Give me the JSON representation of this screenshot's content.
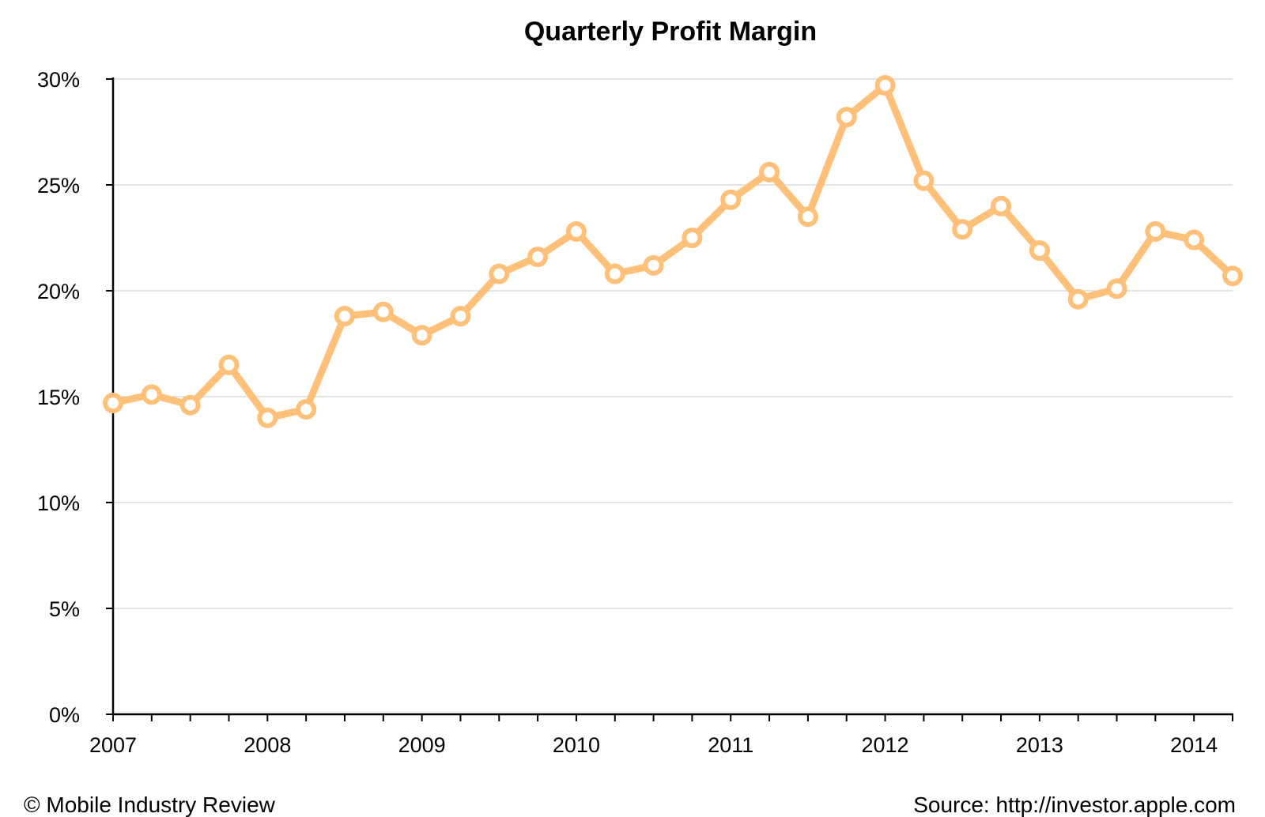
{
  "chart_data": {
    "type": "line",
    "title": "Quarterly Profit Margin",
    "xlabel": "",
    "ylabel": "",
    "ylim": [
      0,
      30
    ],
    "yticks": [
      0,
      5,
      10,
      15,
      20,
      25,
      30
    ],
    "ytick_labels": [
      "0%",
      "5%",
      "10%",
      "15%",
      "20%",
      "25%",
      "30%"
    ],
    "x_range": [
      2007,
      2014.25
    ],
    "xtick_labels": [
      "2007",
      "2008",
      "2009",
      "2010",
      "2011",
      "2012",
      "2013",
      "2014"
    ],
    "grid": true,
    "legend": "none",
    "series": [
      {
        "name": "Profit Margin",
        "color": "#FFC07A",
        "x": [
          2007.0,
          2007.25,
          2007.5,
          2007.75,
          2008.0,
          2008.25,
          2008.5,
          2008.75,
          2009.0,
          2009.25,
          2009.5,
          2009.75,
          2010.0,
          2010.25,
          2010.5,
          2010.75,
          2011.0,
          2011.25,
          2011.5,
          2011.75,
          2012.0,
          2012.25,
          2012.5,
          2012.75,
          2013.0,
          2013.25,
          2013.5,
          2013.75,
          2014.0,
          2014.25
        ],
        "values": [
          14.7,
          15.1,
          14.6,
          16.5,
          14.0,
          14.4,
          18.8,
          19.0,
          17.9,
          18.8,
          20.8,
          21.6,
          22.8,
          20.8,
          21.2,
          22.5,
          24.3,
          25.6,
          23.5,
          28.2,
          29.7,
          25.2,
          22.9,
          24.0,
          21.9,
          19.6,
          20.1,
          22.8,
          22.4,
          20.7
        ]
      }
    ]
  },
  "footer": {
    "credit": "© Mobile Industry Review",
    "source": "Source: http://investor.apple.com"
  }
}
